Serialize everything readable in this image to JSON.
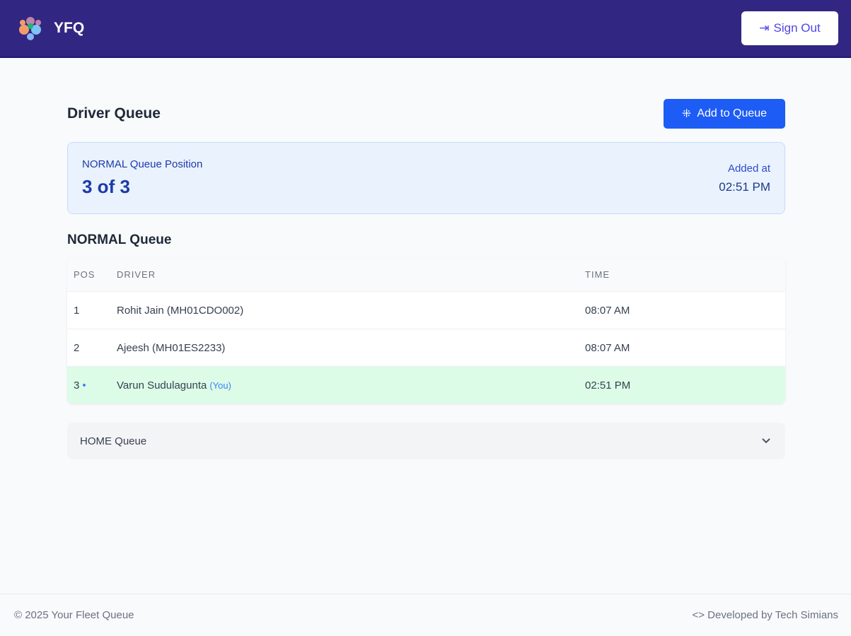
{
  "header": {
    "brand": "YFQ",
    "sign_out": "Sign Out"
  },
  "page": {
    "title": "Driver Queue",
    "add_button": "Add to Queue"
  },
  "position_card": {
    "label": "NORMAL Queue Position",
    "value": "3 of 3",
    "added_label": "Added at",
    "added_time": "02:51 PM"
  },
  "queue": {
    "title": "NORMAL Queue",
    "columns": [
      "POS",
      "DRIVER",
      "TIME"
    ],
    "rows": [
      {
        "pos": "1",
        "driver": "Rohit Jain (MH01CDO002)",
        "time": "08:07 AM"
      },
      {
        "pos": "2",
        "driver": "Ajeesh (MH01ES2233)",
        "time": "08:07 AM"
      },
      {
        "pos": "3",
        "driver": "Varun Sudulagunta",
        "you": "(You)",
        "time": "02:51 PM",
        "dot": "•"
      }
    ]
  },
  "home_queue": {
    "label": "HOME Queue"
  },
  "footer": {
    "copyright": "© 2025 Your Fleet Queue",
    "credit": "Developed by Tech Simians"
  },
  "colors": {
    "header": "#312783",
    "primary": "#1d5cf5",
    "highlight_row": "#dcfce7"
  }
}
